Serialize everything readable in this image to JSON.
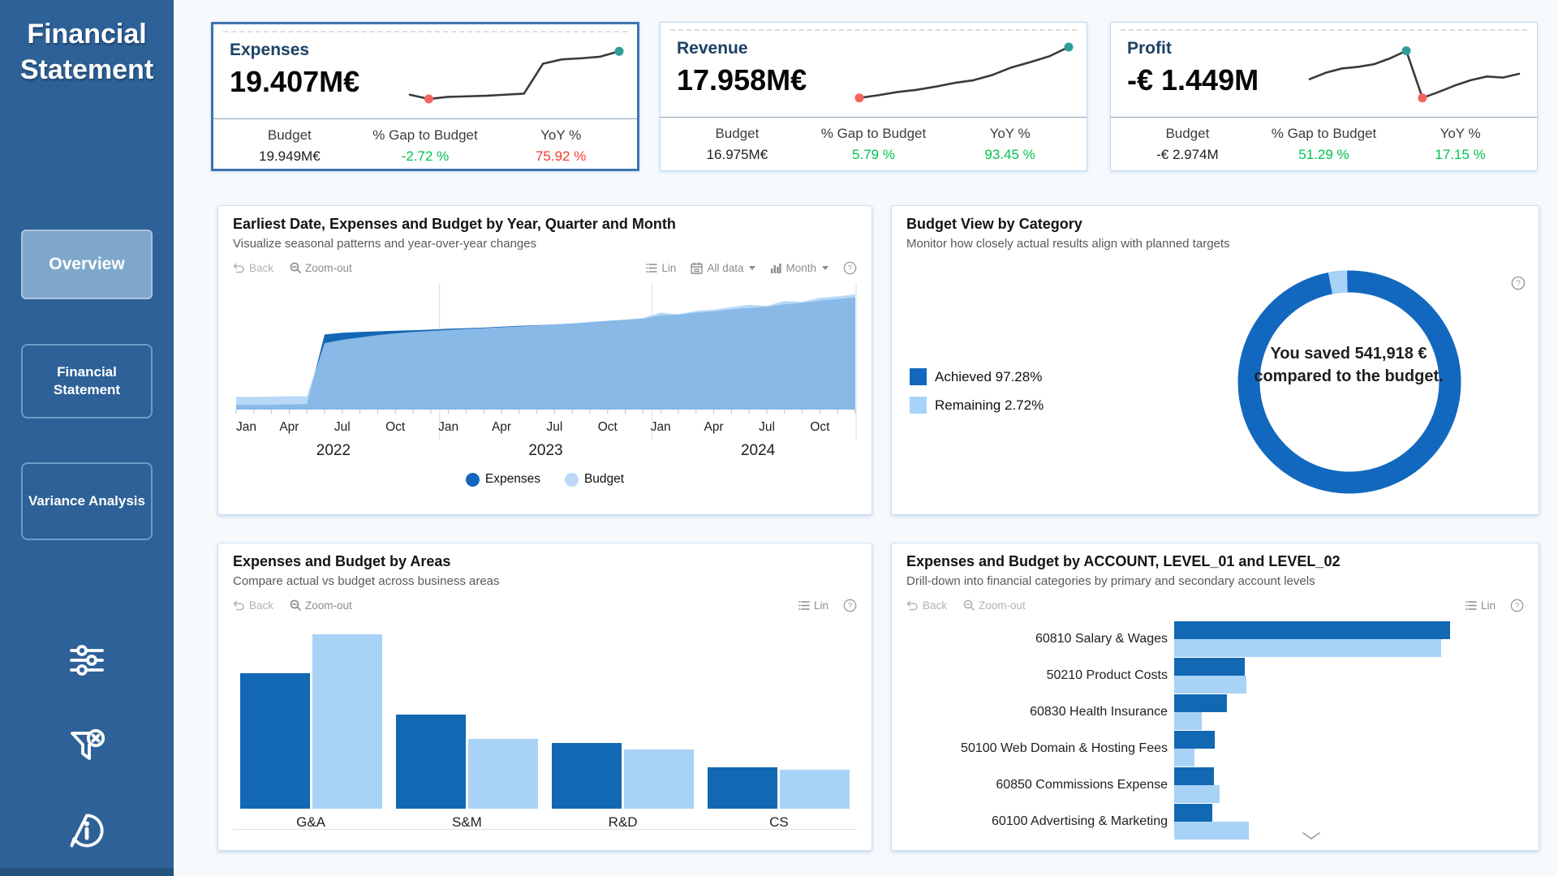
{
  "colors": {
    "sidebar_bg": "#2D6197",
    "accent_dark_blue": "#1268B3",
    "accent_light_blue": "#A9D2F7",
    "green": "#00C24E",
    "red": "#F13A2D",
    "spark_line": "#3A3A3A",
    "dot_min": "#F4655E",
    "dot_max": "#2E9D9C",
    "donut_dark": "#1268BE",
    "donut_light": "#A8D3F8"
  },
  "sidebar": {
    "title": "Financial Statement",
    "nav": [
      {
        "label": "Overview",
        "active": true
      },
      {
        "label": "Financial Statement",
        "active": false
      },
      {
        "label": "Variance Analysis",
        "active": false
      }
    ],
    "icons": [
      "sliders-icon",
      "clear-filter-icon",
      "info-icon"
    ]
  },
  "toolbar": {
    "back": "Back",
    "zoom_out": "Zoom-out",
    "lin": "Lin",
    "all_data": "All data",
    "month": "Month"
  },
  "kpi_cards": [
    {
      "title": "Expenses",
      "value": "19.407M€",
      "selected": true,
      "metrics": [
        {
          "label": "Budget",
          "value": "19.949M€",
          "tone": "plain"
        },
        {
          "label": "% Gap to Budget",
          "value": "-2.72 %",
          "tone": "green"
        },
        {
          "label": "YoY %",
          "value": "75.92 %",
          "tone": "red"
        }
      ],
      "spark": {
        "values": [
          0.14,
          0.06,
          0.1,
          0.11,
          0.12,
          0.14,
          0.16,
          0.72,
          0.8,
          0.82,
          0.85,
          0.95
        ],
        "min_dot": 1,
        "max_dot": 11
      }
    },
    {
      "title": "Revenue",
      "value": "17.958M€",
      "selected": false,
      "metrics": [
        {
          "label": "Budget",
          "value": "16.975M€",
          "tone": "plain"
        },
        {
          "label": "% Gap to Budget",
          "value": "5.79 %",
          "tone": "green"
        },
        {
          "label": "YoY %",
          "value": "93.45 %",
          "tone": "green"
        }
      ],
      "spark": {
        "values": [
          0.05,
          0.1,
          0.16,
          0.2,
          0.26,
          0.33,
          0.38,
          0.48,
          0.62,
          0.72,
          0.83,
          1.0
        ],
        "min_dot": 0,
        "max_dot": 11
      }
    },
    {
      "title": "Profit",
      "value": "-€ 1.449M",
      "selected": false,
      "metrics": [
        {
          "label": "Budget",
          "value": "-€ 2.974M",
          "tone": "plain"
        },
        {
          "label": "% Gap to Budget",
          "value": "51.29 %",
          "tone": "green"
        },
        {
          "label": "YoY %",
          "value": "17.15 %",
          "tone": "green"
        }
      ],
      "spark": {
        "values": [
          0.4,
          0.52,
          0.6,
          0.63,
          0.68,
          0.79,
          0.93,
          0.05,
          0.16,
          0.28,
          0.38,
          0.45,
          0.43,
          0.5
        ],
        "min_dot": 7,
        "max_dot": 6
      }
    }
  ],
  "panels": {
    "area": {
      "title": "Earliest Date, Expenses and Budget by Year, Quarter and Month",
      "subtitle": "Visualize seasonal patterns and year-over-year changes",
      "legend": [
        "Expenses",
        "Budget"
      ]
    },
    "donut": {
      "title": "Budget View by Category",
      "subtitle": "Monitor how closely actual results align with planned targets",
      "legend": [
        "Achieved 97.28%",
        "Remaining 2.72%"
      ],
      "center_text": "You saved 541,918 € compared to the budget."
    },
    "bars": {
      "title": "Expenses and Budget by Areas",
      "subtitle": "Compare actual vs budget across business areas"
    },
    "hbars": {
      "title": "Expenses and Budget by ACCOUNT, LEVEL_01 and LEVEL_02",
      "subtitle": "Drill-down into financial categories by primary and secondary account levels"
    }
  },
  "chart_data": {
    "area": {
      "type": "area",
      "tick_months": [
        "Jan",
        "Apr",
        "Jul",
        "Oct"
      ],
      "years": [
        "2022",
        "2023",
        "2024"
      ],
      "ylim": [
        0,
        20.5
      ],
      "series": [
        {
          "name": "Expenses",
          "values": [
            0.8,
            0.8,
            0.85,
            0.9,
            0.95,
            13.0,
            13.3,
            13.45,
            13.55,
            13.65,
            13.75,
            13.85,
            14.0,
            14.1,
            14.2,
            14.35,
            14.5,
            14.6,
            14.75,
            14.9,
            15.1,
            15.35,
            15.55,
            15.75,
            16.3,
            16.45,
            16.8,
            17.0,
            17.35,
            17.6,
            17.8,
            18.2,
            18.5,
            18.85,
            19.15,
            19.407
          ]
        },
        {
          "name": "Budget",
          "values": [
            2.2,
            2.2,
            2.25,
            2.3,
            2.3,
            11.5,
            12.1,
            12.5,
            12.9,
            13.2,
            13.45,
            13.6,
            13.8,
            13.95,
            14.1,
            14.25,
            14.4,
            14.55,
            14.75,
            14.95,
            15.2,
            15.4,
            15.6,
            15.85,
            16.8,
            16.5,
            17.1,
            17.3,
            17.75,
            18.15,
            17.95,
            18.8,
            18.65,
            19.35,
            19.6,
            19.949
          ]
        }
      ]
    },
    "donut": {
      "type": "pie",
      "slices": [
        {
          "label": "Achieved",
          "value": 97.28
        },
        {
          "label": "Remaining",
          "value": 2.72
        }
      ]
    },
    "bars": {
      "type": "bar",
      "categories": [
        "G&A",
        "S&M",
        "R&D",
        "CS"
      ],
      "series": [
        {
          "name": "Expenses",
          "values": [
            6.2,
            4.3,
            3.0,
            1.9
          ]
        },
        {
          "name": "Budget",
          "values": [
            8.0,
            3.2,
            2.7,
            1.8
          ]
        }
      ]
    },
    "hbars": {
      "type": "bar",
      "categories": [
        "60810 Salary & Wages",
        "50210 Product Costs",
        "60830 Health Insurance",
        "50100 Web Domain & Hosting Fees",
        "60850 Commissions Expense",
        "60100 Advertising & Marketing"
      ],
      "series": [
        {
          "name": "Expenses",
          "values": [
            8.9,
            2.28,
            1.7,
            1.32,
            1.27,
            1.22
          ]
        },
        {
          "name": "Budget",
          "values": [
            8.6,
            2.32,
            0.88,
            0.67,
            1.47,
            2.4
          ]
        }
      ]
    }
  }
}
